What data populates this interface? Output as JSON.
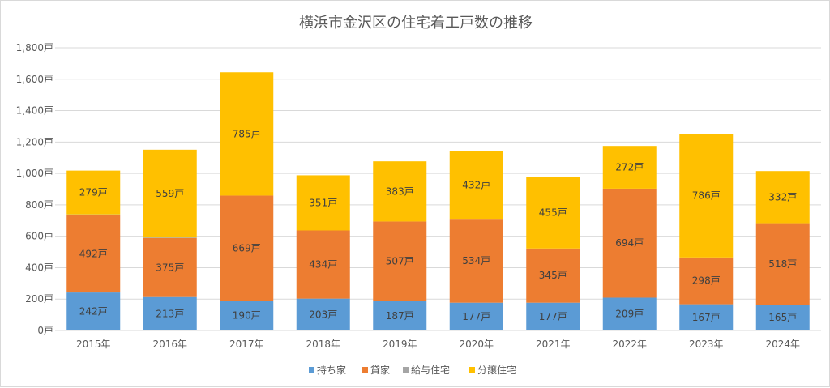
{
  "chart_data": {
    "type": "bar",
    "stacked": true,
    "title": "横浜市金沢区の住宅着工戸数の推移",
    "categories": [
      "2015年",
      "2016年",
      "2017年",
      "2018年",
      "2019年",
      "2020年",
      "2021年",
      "2022年",
      "2023年",
      "2024年"
    ],
    "ylim": [
      0,
      1800
    ],
    "y_ticks": [
      {
        "value": 0,
        "label": "0戸"
      },
      {
        "value": 200,
        "label": "200戸"
      },
      {
        "value": 400,
        "label": "400戸"
      },
      {
        "value": 600,
        "label": "600戸"
      },
      {
        "value": 800,
        "label": "800戸"
      },
      {
        "value": 1000,
        "label": "1,000戸"
      },
      {
        "value": 1200,
        "label": "1,200戸"
      },
      {
        "value": 1400,
        "label": "1,400戸"
      },
      {
        "value": 1600,
        "label": "1,600戸"
      },
      {
        "value": 1800,
        "label": "1,800戸"
      }
    ],
    "grid": true,
    "legend_position": "bottom",
    "label_suffix": "戸",
    "series": [
      {
        "name": "持ち家",
        "color": "#5b9bd5",
        "values": [
          242,
          213,
          190,
          203,
          187,
          177,
          177,
          209,
          167,
          165
        ],
        "labeled": true
      },
      {
        "name": "貸家",
        "color": "#ed7d31",
        "values": [
          492,
          375,
          669,
          434,
          507,
          534,
          345,
          694,
          298,
          518
        ],
        "labeled": true
      },
      {
        "name": "給与住宅",
        "color": "#a5a5a5",
        "values": [
          5,
          4,
          0,
          0,
          0,
          0,
          0,
          0,
          0,
          0
        ],
        "labeled": false
      },
      {
        "name": "分譲住宅",
        "color": "#ffc000",
        "values": [
          279,
          559,
          785,
          351,
          383,
          432,
          455,
          272,
          786,
          332
        ],
        "labeled": true
      }
    ],
    "gridline_color": "#d9d9d9",
    "text_color": "#595959"
  }
}
